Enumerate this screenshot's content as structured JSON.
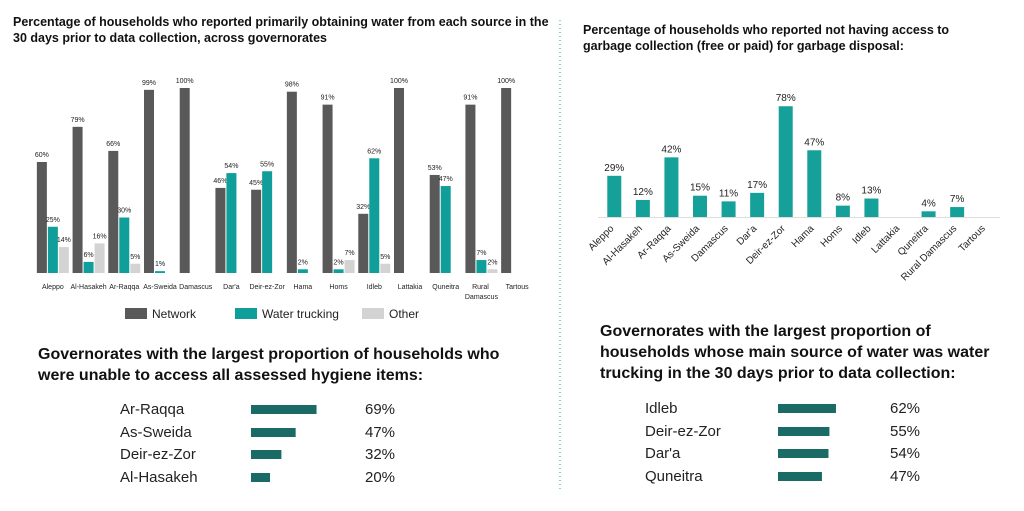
{
  "chart_data": [
    {
      "type": "bar",
      "title": "Percentage of households who reported primarily obtaining water from each source in the 30 days prior to data collection, across governorates",
      "categories": [
        "Aleppo",
        "Al-Hasakeh",
        "Ar-Raqqa",
        "As-Sweida",
        "Damascus",
        "Dar'a",
        "Deir-ez-Zor",
        "Hama",
        "Homs",
        "Idleb",
        "Lattakia",
        "Quneitra",
        "Rural Damascus",
        "Tartous"
      ],
      "ylim": [
        0,
        100
      ],
      "series": [
        {
          "name": "Network",
          "color": "#595959",
          "values": [
            60,
            79,
            66,
            99,
            100,
            46,
            45,
            98,
            91,
            32,
            100,
            53,
            91,
            100
          ],
          "value_labels": [
            "60%",
            "79%",
            "66%",
            "99%",
            "100%",
            "46%",
            "45%",
            "98%",
            "91%",
            "32%",
            "100%",
            "53%",
            "91%",
            "100%"
          ]
        },
        {
          "name": "Water trucking",
          "color": "#0f9e99",
          "values": [
            25,
            6,
            30,
            1,
            null,
            54,
            55,
            2,
            2,
            62,
            null,
            47,
            7,
            null
          ],
          "value_labels": [
            "25%",
            "6%",
            "30%",
            "1%",
            null,
            "54%",
            "55%",
            "2%",
            "2%",
            "62%",
            null,
            "47%",
            "7%",
            null
          ]
        },
        {
          "name": "Other",
          "color": "#d3d3d3",
          "values": [
            14,
            16,
            5,
            null,
            null,
            null,
            null,
            null,
            7,
            5,
            null,
            null,
            2,
            null
          ],
          "value_labels": [
            "14%",
            "16%",
            "5%",
            null,
            null,
            null,
            null,
            null,
            "7%",
            "5%",
            null,
            null,
            "2%",
            null
          ]
        }
      ]
    },
    {
      "type": "bar",
      "title": "Percentage of households who reported not having access to garbage collection (free or paid) for garbage disposal:",
      "categories": [
        "Aleppo",
        "Al-Hasakeh",
        "Ar-Raqqa",
        "As-Sweida",
        "Damascus",
        "Dar'a",
        "Deir-ez-Zor",
        "Hama",
        "Homs",
        "Idleb",
        "Lattakia",
        "Quneitra",
        "Rural Damascus",
        "Tartous"
      ],
      "ylim": [
        0,
        100
      ],
      "color": "#16a09a",
      "values": [
        29,
        12,
        42,
        15,
        11,
        17,
        78,
        47,
        8,
        13,
        null,
        4,
        7,
        null
      ],
      "value_labels": [
        "29%",
        "12%",
        "42%",
        "15%",
        "11%",
        "17%",
        "78%",
        "47%",
        "8%",
        "13%",
        null,
        "4%",
        "7%",
        null
      ]
    },
    {
      "type": "barh",
      "title": "Governorates with the largest proportion of households who were unable to access all assessed hygiene items:",
      "categories": [
        "Ar-Raqqa",
        "As-Sweida",
        "Deir-ez-Zor",
        "Al-Hasakeh"
      ],
      "xlim": [
        0,
        100
      ],
      "color": "#1a6b66",
      "values": [
        69,
        47,
        32,
        20
      ],
      "value_labels": [
        "69%",
        "47%",
        "32%",
        "20%"
      ]
    },
    {
      "type": "barh",
      "title": "Governorates with the largest proportion of households whose main source of water was water trucking in the 30 days prior to data collection:",
      "categories": [
        "Idleb",
        "Deir-ez-Zor",
        "Dar'a",
        "Quneitra"
      ],
      "xlim": [
        0,
        100
      ],
      "color": "#1a6b66",
      "values": [
        62,
        55,
        54,
        47
      ],
      "value_labels": [
        "62%",
        "55%",
        "54%",
        "47%"
      ]
    }
  ]
}
